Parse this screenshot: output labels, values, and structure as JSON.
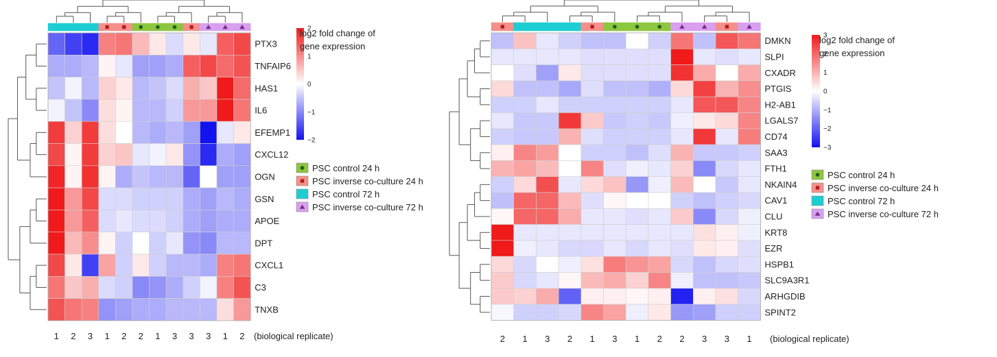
{
  "colors": {
    "control_24h": "#8dc63f",
    "inverse_24h": "#f4908c",
    "control_72h": "#1ecdd4",
    "inverse_72h": "#d8a0ef",
    "marker_circle": "#1f5f1f",
    "marker_square": "#b81b1b",
    "marker_triangle": "#7a2c8c",
    "scale_low": "#1212f0",
    "scale_mid": "#ffffff",
    "scale_high": "#f01a1a"
  },
  "chart_data": [
    {
      "type": "heatmap",
      "scale": {
        "title_lines": [
          "log2 fold change of",
          "gene expression"
        ],
        "min": -2,
        "max": 2,
        "ticks": [
          "2",
          "1",
          "0",
          "−1",
          "−2"
        ]
      },
      "columns": [
        {
          "group": "control_72h",
          "replicate": "1"
        },
        {
          "group": "control_72h",
          "replicate": "2"
        },
        {
          "group": "control_72h",
          "replicate": "3"
        },
        {
          "group": "inverse_24h",
          "replicate": "1"
        },
        {
          "group": "inverse_24h",
          "replicate": "2"
        },
        {
          "group": "control_24h",
          "replicate": "2"
        },
        {
          "group": "control_24h",
          "replicate": "1"
        },
        {
          "group": "control_24h",
          "replicate": "3"
        },
        {
          "group": "inverse_24h",
          "replicate": "3"
        },
        {
          "group": "inverse_72h",
          "replicate": "3"
        },
        {
          "group": "inverse_72h",
          "replicate": "1"
        },
        {
          "group": "inverse_72h",
          "replicate": "2"
        }
      ],
      "rows": [
        "PTX3",
        "TNFAIP6",
        "HAS1",
        "IL6",
        "EFEMP1",
        "CXCL12",
        "OGN",
        "GSN",
        "APOE",
        "DPT",
        "CXCL1",
        "C3",
        "TNXB"
      ],
      "values": [
        [
          -1.3,
          -1.6,
          -1.8,
          1.1,
          1.2,
          0.6,
          0.2,
          -0.3,
          0.2,
          -0.2,
          1.4,
          1.6
        ],
        [
          -0.7,
          -0.7,
          -0.6,
          0.1,
          -0.2,
          -0.8,
          -0.8,
          -0.7,
          1.4,
          1.6,
          1.3,
          1.5
        ],
        [
          -0.5,
          -0.1,
          -0.6,
          0.4,
          0.2,
          -0.6,
          -0.5,
          -0.3,
          0.7,
          0.5,
          2.2,
          1.3
        ],
        [
          -0.1,
          -0.5,
          -1.0,
          0.3,
          0.1,
          -0.6,
          -0.6,
          -0.4,
          0.9,
          0.9,
          2.1,
          1.2
        ],
        [
          1.7,
          0.4,
          1.7,
          0.3,
          0.0,
          -0.6,
          -0.7,
          -0.6,
          -0.8,
          -2.0,
          -0.2,
          0.2
        ],
        [
          1.6,
          0.1,
          1.7,
          0.4,
          0.5,
          -0.2,
          -0.1,
          0.2,
          -0.9,
          -1.8,
          -0.7,
          -0.8
        ],
        [
          1.9,
          0.1,
          1.8,
          0.1,
          -0.7,
          -0.5,
          -0.6,
          -0.6,
          -1.3,
          0.0,
          -0.8,
          -0.8
        ],
        [
          2.0,
          0.9,
          1.6,
          -0.3,
          -0.3,
          -0.4,
          -0.4,
          -0.4,
          -0.7,
          -0.8,
          -0.6,
          -0.7
        ],
        [
          2.0,
          0.9,
          1.4,
          -0.3,
          -0.2,
          -0.3,
          -0.3,
          -0.4,
          -0.7,
          -0.8,
          -0.7,
          -0.7
        ],
        [
          2.0,
          0.6,
          1.0,
          0.1,
          -0.4,
          0.0,
          -0.4,
          -0.2,
          -0.9,
          -1.0,
          -0.6,
          -0.6
        ],
        [
          1.6,
          0.2,
          -1.6,
          0.8,
          -0.4,
          0.2,
          -0.4,
          -0.6,
          -0.6,
          -0.7,
          1.1,
          1.2
        ],
        [
          1.2,
          0.5,
          0.7,
          -0.3,
          -0.4,
          -1.0,
          -0.9,
          -0.7,
          -0.4,
          -0.1,
          1.1,
          1.5
        ],
        [
          1.5,
          1.2,
          1.1,
          -0.9,
          -0.8,
          -0.7,
          -0.7,
          -0.6,
          -0.6,
          -0.6,
          0.3,
          0.9
        ]
      ],
      "xlabel": "(biological replicate)"
    },
    {
      "type": "heatmap",
      "scale": {
        "title_lines": [
          "log2 fold change of",
          "gene expression"
        ],
        "min": -3,
        "max": 3,
        "ticks": [
          "3",
          "2",
          "1",
          "0",
          "−1",
          "−2",
          "−3"
        ]
      },
      "columns": [
        {
          "group": "inverse_24h",
          "replicate": "2"
        },
        {
          "group": "control_72h",
          "replicate": "1"
        },
        {
          "group": "control_72h",
          "replicate": "3"
        },
        {
          "group": "control_72h",
          "replicate": "2"
        },
        {
          "group": "inverse_24h",
          "replicate": "1"
        },
        {
          "group": "control_24h",
          "replicate": "3"
        },
        {
          "group": "control_24h",
          "replicate": "1"
        },
        {
          "group": "control_24h",
          "replicate": "2"
        },
        {
          "group": "inverse_72h",
          "replicate": "2"
        },
        {
          "group": "inverse_72h",
          "replicate": "3"
        },
        {
          "group": "inverse_24h",
          "replicate": "3"
        },
        {
          "group": "inverse_72h",
          "replicate": "1"
        }
      ],
      "rows": [
        "DMKN",
        "SLPI",
        "CXADR",
        "PTGIS",
        "H2-AB1",
        "LGALS7",
        "CD74",
        "SAA3",
        "FTH1",
        "NKAIN4",
        "CAV1",
        "CLU",
        "KRT8",
        "EZR",
        "HSPB1",
        "SLC9A3R1",
        "ARHGDIB",
        "SPINT2"
      ],
      "values": [
        [
          -0.8,
          0.8,
          -0.3,
          -0.6,
          -0.8,
          -0.8,
          0.0,
          -0.6,
          1.8,
          -0.8,
          2.2,
          1.8
        ],
        [
          -0.3,
          -0.3,
          -0.3,
          -0.3,
          -0.4,
          -0.4,
          -0.4,
          -0.4,
          3.0,
          -0.3,
          -0.4,
          -0.3
        ],
        [
          0.0,
          -0.4,
          -1.2,
          0.3,
          -0.4,
          -0.4,
          -0.4,
          -0.4,
          2.7,
          1.1,
          0.0,
          1.1
        ],
        [
          0.5,
          -0.8,
          -0.8,
          -1.1,
          -0.4,
          -0.8,
          -0.8,
          -1.0,
          0.5,
          2.5,
          1.0,
          1.5
        ],
        [
          -0.6,
          -0.6,
          -0.3,
          -0.6,
          -0.6,
          -0.6,
          -0.6,
          -0.6,
          -0.3,
          2.2,
          2.2,
          1.6
        ],
        [
          -0.3,
          -0.7,
          -0.7,
          2.6,
          0.7,
          -0.7,
          -0.6,
          -0.7,
          -0.2,
          0.3,
          0.5,
          1.6
        ],
        [
          -0.6,
          -0.7,
          -0.7,
          1.0,
          -0.4,
          -0.6,
          -0.6,
          -0.6,
          -0.3,
          2.6,
          -0.3,
          1.7
        ],
        [
          0.2,
          1.6,
          1.3,
          0.0,
          -0.6,
          -0.6,
          -0.8,
          -0.4,
          1.0,
          -0.7,
          -0.7,
          -0.6
        ],
        [
          1.0,
          1.2,
          0.9,
          0.0,
          1.6,
          -0.4,
          -0.2,
          -0.3,
          0.6,
          -1.5,
          -0.5,
          -0.3
        ],
        [
          -0.6,
          0.5,
          2.3,
          -0.3,
          0.5,
          0.8,
          -1.3,
          -0.2,
          0.9,
          0.0,
          -0.7,
          -0.3
        ],
        [
          -0.8,
          2.0,
          2.0,
          0.9,
          -0.4,
          0.1,
          0.0,
          0.0,
          -0.6,
          -0.8,
          -0.6,
          -0.5
        ],
        [
          0.1,
          2.0,
          2.0,
          1.1,
          -0.3,
          -0.3,
          -0.4,
          -0.3,
          0.7,
          -1.5,
          -0.5,
          -0.2
        ],
        [
          3.0,
          -0.3,
          -0.3,
          -0.3,
          -0.3,
          -0.3,
          -0.3,
          -0.3,
          -0.3,
          0.4,
          0.2,
          -0.2
        ],
        [
          3.0,
          -0.2,
          -0.3,
          -0.5,
          -0.5,
          -0.3,
          -0.5,
          -0.3,
          -0.4,
          0.3,
          0.2,
          -0.4
        ],
        [
          0.5,
          -0.5,
          0.0,
          -0.2,
          0.4,
          1.7,
          1.4,
          1.2,
          -0.5,
          -0.8,
          -0.5,
          -0.4
        ],
        [
          0.7,
          -0.5,
          -0.3,
          0.1,
          0.9,
          1.1,
          0.6,
          1.6,
          -0.2,
          -0.8,
          -0.8,
          -0.7
        ],
        [
          0.7,
          0.6,
          1.1,
          -2.0,
          0.2,
          0.2,
          0.1,
          0.2,
          -2.8,
          0.2,
          0.4,
          -0.5
        ],
        [
          -0.1,
          -0.6,
          -0.6,
          -0.5,
          1.6,
          1.2,
          -0.2,
          0.3,
          -1.3,
          -1.2,
          -0.6,
          -0.6
        ]
      ],
      "xlabel": "(biological replicate)"
    }
  ],
  "legend": [
    {
      "group": "control_24h",
      "label": "PSC control 24 h",
      "marker": "circle"
    },
    {
      "group": "inverse_24h",
      "label": "PSC inverse co-culture 24 h",
      "marker": "square"
    },
    {
      "group": "control_72h",
      "label": "PSC control 72 h",
      "marker": "none"
    },
    {
      "group": "inverse_72h",
      "label": "PSC inverse co-culture 72 h",
      "marker": "triangle"
    }
  ]
}
